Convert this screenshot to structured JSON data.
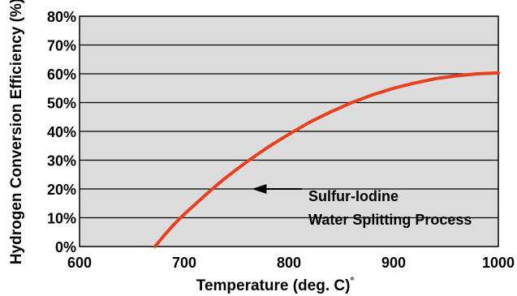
{
  "chart_data": {
    "type": "line",
    "xlabel": "Temperature (deg. C)",
    "xlabel_degree_mark": "°",
    "ylabel": "Hydrogen Conversion Efficiency (%)",
    "xlim": [
      600,
      1000
    ],
    "ylim": [
      0,
      80
    ],
    "x_ticks": [
      "600",
      "700",
      "800",
      "900",
      "1000"
    ],
    "y_ticks": [
      "0%",
      "10%",
      "20%",
      "30%",
      "40%",
      "50%",
      "60%",
      "70%",
      "80%"
    ],
    "grid": "horizontal",
    "plot_background": "#dcdcdc",
    "series": [
      {
        "color": "#e8401c",
        "x": [
          672,
          680,
          690,
          700,
          710,
          720,
          730,
          740,
          750,
          760,
          770,
          780,
          790,
          800,
          820,
          840,
          860,
          880,
          900,
          920,
          940,
          960,
          980,
          1000
        ],
        "y": [
          0,
          3.5,
          7.6,
          11.2,
          14.5,
          17.8,
          21,
          24,
          26.8,
          29.5,
          32,
          34.5,
          36.8,
          39,
          43.2,
          46.8,
          50,
          52.7,
          55,
          56.8,
          58.3,
          59.3,
          60,
          60.3
        ]
      }
    ],
    "annotation": {
      "lines": [
        "Sulfur-Iodine",
        "Water Splitting Process"
      ],
      "arrow_target": {
        "x": 760,
        "y": 20
      }
    }
  }
}
